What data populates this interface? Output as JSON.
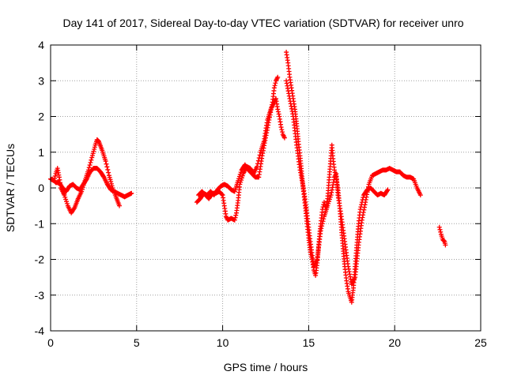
{
  "chart_data": {
    "type": "scatter",
    "title": "Day 141 of 2017, Sidereal Day-to-day VTEC variation (SDTVAR) for receiver unro",
    "xlabel": "GPS time / hours",
    "ylabel": "SDTVAR / TECUs",
    "xlim": [
      0,
      25
    ],
    "ylim": [
      -4,
      4
    ],
    "xticks": [
      0,
      5,
      10,
      15,
      20,
      25
    ],
    "yticks": [
      -4,
      -3,
      -2,
      -1,
      0,
      1,
      2,
      3,
      4
    ],
    "xtick_labels": [
      "0",
      "5",
      "10",
      "15",
      "20",
      "25"
    ],
    "ytick_labels": [
      "-4",
      "-3",
      "-2",
      "-1",
      "0",
      "1",
      "2",
      "3",
      "4"
    ],
    "grid": true,
    "marker": "+",
    "color": "#ff0000",
    "series": [
      {
        "name": "SDTVAR",
        "segments": [
          [
            [
              0.0,
              0.25
            ],
            [
              0.2,
              0.2
            ],
            [
              0.3,
              0.4
            ],
            [
              0.4,
              0.55
            ],
            [
              0.5,
              0.3
            ],
            [
              0.6,
              0.0
            ],
            [
              0.8,
              -0.2
            ],
            [
              1.0,
              -0.5
            ],
            [
              1.2,
              -0.7
            ],
            [
              1.4,
              -0.55
            ],
            [
              1.6,
              -0.3
            ],
            [
              1.8,
              -0.1
            ],
            [
              2.0,
              0.2
            ],
            [
              2.2,
              0.5
            ],
            [
              2.4,
              0.85
            ],
            [
              2.6,
              1.2
            ],
            [
              2.7,
              1.35
            ],
            [
              2.8,
              1.3
            ],
            [
              3.0,
              1.05
            ],
            [
              3.2,
              0.75
            ],
            [
              3.4,
              0.35
            ],
            [
              3.6,
              0.0
            ],
            [
              3.8,
              -0.25
            ],
            [
              4.0,
              -0.5
            ]
          ],
          [
            [
              0.1,
              0.25
            ],
            [
              0.3,
              0.15
            ],
            [
              0.5,
              0.15
            ],
            [
              0.7,
              0.0
            ],
            [
              0.9,
              -0.1
            ],
            [
              1.1,
              0.05
            ],
            [
              1.3,
              0.1
            ],
            [
              1.5,
              0.0
            ],
            [
              1.7,
              -0.05
            ],
            [
              1.9,
              0.1
            ],
            [
              2.1,
              0.25
            ],
            [
              2.3,
              0.45
            ],
            [
              2.5,
              0.55
            ],
            [
              2.7,
              0.55
            ],
            [
              2.9,
              0.45
            ],
            [
              3.1,
              0.3
            ],
            [
              3.3,
              0.1
            ],
            [
              3.5,
              -0.05
            ],
            [
              3.7,
              -0.1
            ],
            [
              3.9,
              -0.15
            ],
            [
              4.1,
              -0.2
            ],
            [
              4.3,
              -0.25
            ],
            [
              4.5,
              -0.2
            ],
            [
              4.7,
              -0.15
            ]
          ],
          [
            [
              8.5,
              -0.4
            ],
            [
              8.7,
              -0.3
            ],
            [
              8.9,
              -0.15
            ],
            [
              9.1,
              -0.2
            ],
            [
              9.3,
              -0.1
            ],
            [
              9.5,
              -0.2
            ],
            [
              9.7,
              -0.05
            ],
            [
              9.9,
              0.05
            ],
            [
              10.1,
              0.1
            ],
            [
              10.3,
              0.05
            ],
            [
              10.5,
              -0.05
            ],
            [
              10.7,
              -0.1
            ],
            [
              10.9,
              0.2
            ],
            [
              11.1,
              0.5
            ],
            [
              11.3,
              0.65
            ],
            [
              11.5,
              0.5
            ],
            [
              11.7,
              0.4
            ],
            [
              11.9,
              0.3
            ],
            [
              12.1,
              0.3
            ],
            [
              12.3,
              0.9
            ],
            [
              12.5,
              1.4
            ],
            [
              12.7,
              1.9
            ],
            [
              12.9,
              2.4
            ],
            [
              13.0,
              2.8
            ],
            [
              13.1,
              3.0
            ],
            [
              13.2,
              3.1
            ]
          ],
          [
            [
              8.6,
              -0.2
            ],
            [
              8.8,
              -0.1
            ],
            [
              9.0,
              -0.2
            ],
            [
              9.2,
              -0.3
            ],
            [
              9.4,
              -0.15
            ],
            [
              9.6,
              -0.15
            ],
            [
              9.8,
              -0.1
            ],
            [
              10.0,
              -0.2
            ],
            [
              10.1,
              -0.5
            ],
            [
              10.2,
              -0.8
            ],
            [
              10.3,
              -0.9
            ],
            [
              10.5,
              -0.85
            ],
            [
              10.7,
              -0.9
            ],
            [
              10.8,
              -0.7
            ],
            [
              10.9,
              -0.35
            ],
            [
              11.0,
              0.1
            ],
            [
              11.2,
              0.4
            ],
            [
              11.4,
              0.6
            ],
            [
              11.6,
              0.55
            ],
            [
              11.8,
              0.4
            ],
            [
              12.0,
              0.6
            ],
            [
              12.2,
              1.0
            ],
            [
              12.4,
              1.3
            ],
            [
              12.6,
              1.9
            ],
            [
              12.8,
              2.2
            ],
            [
              13.0,
              2.4
            ],
            [
              13.1,
              2.5
            ],
            [
              13.2,
              2.2
            ],
            [
              13.3,
              2.0
            ],
            [
              13.4,
              1.7
            ],
            [
              13.5,
              1.5
            ],
            [
              13.6,
              1.4
            ]
          ],
          [
            [
              13.7,
              3.8
            ],
            [
              13.8,
              3.5
            ],
            [
              13.9,
              3.1
            ],
            [
              14.0,
              2.8
            ],
            [
              14.1,
              2.5
            ],
            [
              14.2,
              2.2
            ],
            [
              14.3,
              1.8
            ],
            [
              14.4,
              1.3
            ],
            [
              14.5,
              0.9
            ],
            [
              14.6,
              0.4
            ],
            [
              14.7,
              -0.1
            ],
            [
              14.8,
              -0.5
            ],
            [
              14.9,
              -1.0
            ],
            [
              15.0,
              -1.4
            ],
            [
              15.1,
              -1.8
            ],
            [
              15.2,
              -2.0
            ],
            [
              15.3,
              -2.3
            ],
            [
              15.4,
              -2.45
            ],
            [
              15.5,
              -2.1
            ],
            [
              15.6,
              -1.5
            ],
            [
              15.7,
              -1.0
            ],
            [
              15.8,
              -0.6
            ],
            [
              15.9,
              -0.4
            ],
            [
              16.0,
              -0.6
            ],
            [
              16.1,
              -0.3
            ],
            [
              16.2,
              0.3
            ],
            [
              16.3,
              0.9
            ],
            [
              16.35,
              1.2
            ],
            [
              16.4,
              0.9
            ],
            [
              16.5,
              0.5
            ],
            [
              16.6,
              0.3
            ],
            [
              16.7,
              0.0
            ],
            [
              16.8,
              -0.5
            ],
            [
              16.9,
              -1.1
            ],
            [
              17.0,
              -1.7
            ],
            [
              17.1,
              -2.2
            ],
            [
              17.2,
              -2.6
            ],
            [
              17.3,
              -2.9
            ],
            [
              17.4,
              -3.05
            ],
            [
              17.5,
              -3.2
            ],
            [
              17.6,
              -2.8
            ],
            [
              17.7,
              -2.2
            ],
            [
              17.8,
              -1.6
            ],
            [
              17.9,
              -1.0
            ],
            [
              18.0,
              -0.6
            ],
            [
              18.1,
              -0.4
            ],
            [
              18.2,
              -0.2
            ],
            [
              18.4,
              -0.05
            ],
            [
              18.6,
              0.0
            ],
            [
              18.8,
              -0.1
            ],
            [
              19.0,
              -0.2
            ],
            [
              19.2,
              -0.15
            ],
            [
              19.4,
              -0.2
            ],
            [
              19.6,
              -0.05
            ]
          ],
          [
            [
              13.7,
              3.0
            ],
            [
              13.9,
              2.5
            ],
            [
              14.1,
              2.0
            ],
            [
              14.3,
              1.2
            ],
            [
              14.5,
              0.5
            ],
            [
              14.7,
              0.0
            ],
            [
              14.9,
              -0.7
            ],
            [
              15.1,
              -1.5
            ],
            [
              15.3,
              -2.2
            ],
            [
              15.5,
              -2.0
            ],
            [
              15.7,
              -1.2
            ],
            [
              15.9,
              -0.8
            ],
            [
              16.1,
              -0.5
            ],
            [
              16.3,
              -0.2
            ],
            [
              16.5,
              0.3
            ],
            [
              16.6,
              0.4
            ],
            [
              16.7,
              -0.2
            ],
            [
              16.9,
              -0.8
            ],
            [
              17.1,
              -1.5
            ],
            [
              17.3,
              -2.2
            ],
            [
              17.5,
              -2.7
            ],
            [
              17.7,
              -2.5
            ],
            [
              17.9,
              -1.6
            ],
            [
              18.1,
              -0.9
            ],
            [
              18.3,
              -0.4
            ],
            [
              18.5,
              0.1
            ],
            [
              18.7,
              0.35
            ],
            [
              18.9,
              0.4
            ],
            [
              19.1,
              0.45
            ],
            [
              19.3,
              0.5
            ],
            [
              19.5,
              0.5
            ],
            [
              19.7,
              0.55
            ],
            [
              19.9,
              0.5
            ],
            [
              20.1,
              0.45
            ],
            [
              20.3,
              0.45
            ],
            [
              20.5,
              0.35
            ],
            [
              20.7,
              0.3
            ],
            [
              20.9,
              0.3
            ],
            [
              21.1,
              0.25
            ],
            [
              21.3,
              0.0
            ],
            [
              21.5,
              -0.2
            ]
          ],
          [
            [
              22.6,
              -1.1
            ],
            [
              22.7,
              -1.3
            ],
            [
              22.8,
              -1.45
            ],
            [
              22.9,
              -1.5
            ],
            [
              22.95,
              -1.6
            ]
          ]
        ]
      }
    ]
  }
}
